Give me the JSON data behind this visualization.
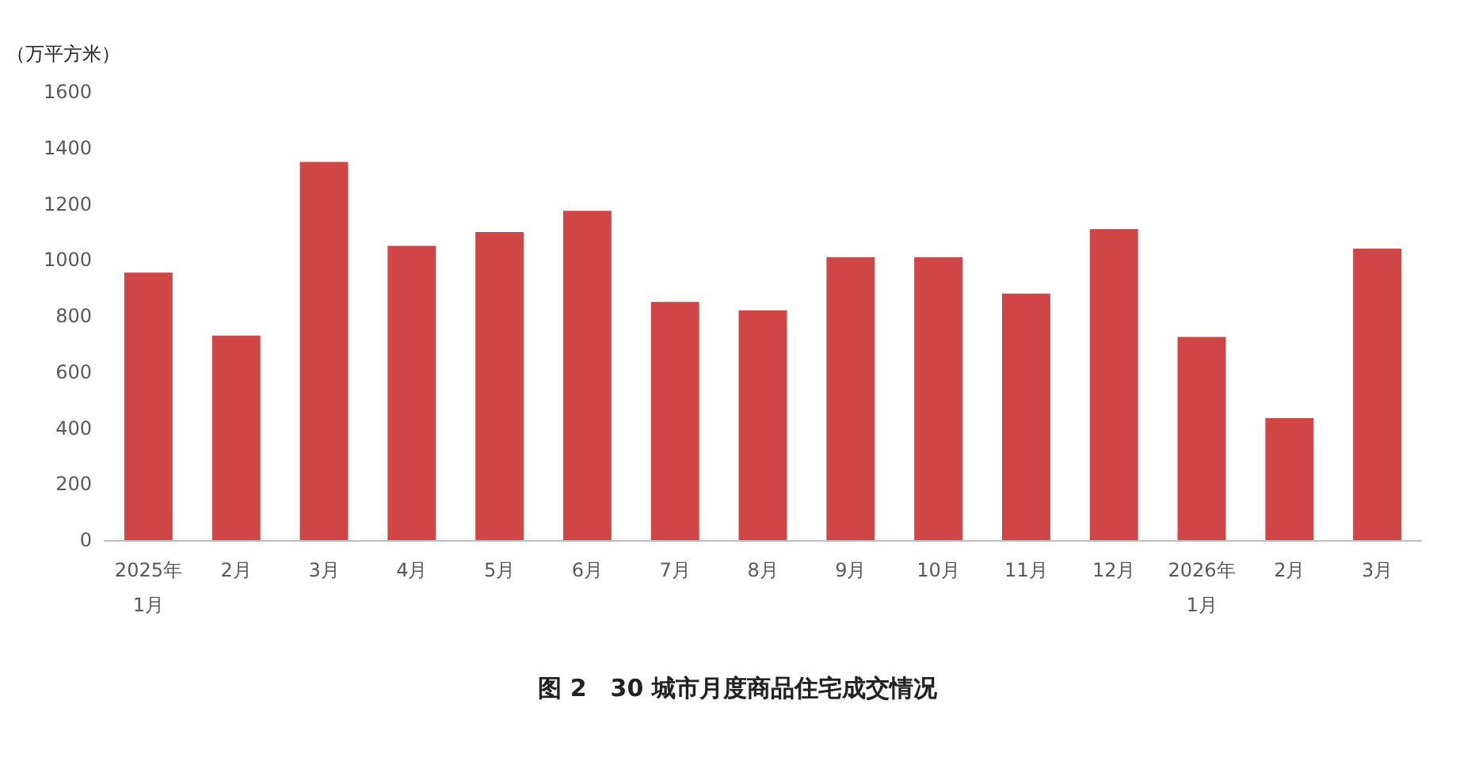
{
  "chart_data": {
    "type": "bar",
    "title": "图 2　30 城市月度商品住宅成交情况",
    "ylabel": "（万平方米）",
    "categories": [
      "2025年\n1月",
      "2月",
      "3月",
      "4月",
      "5月",
      "6月",
      "7月",
      "8月",
      "9月",
      "10月",
      "11月",
      "12月",
      "2026年\n1月",
      "2月",
      "3月"
    ],
    "values": [
      955,
      730,
      1350,
      1050,
      1100,
      1175,
      850,
      820,
      1010,
      1010,
      880,
      1110,
      725,
      435,
      1040
    ],
    "color": "#d04545",
    "ylim": [
      0,
      1600
    ],
    "yticks": [
      0,
      200,
      400,
      600,
      800,
      1000,
      1200,
      1400,
      1600
    ],
    "grid": false
  }
}
